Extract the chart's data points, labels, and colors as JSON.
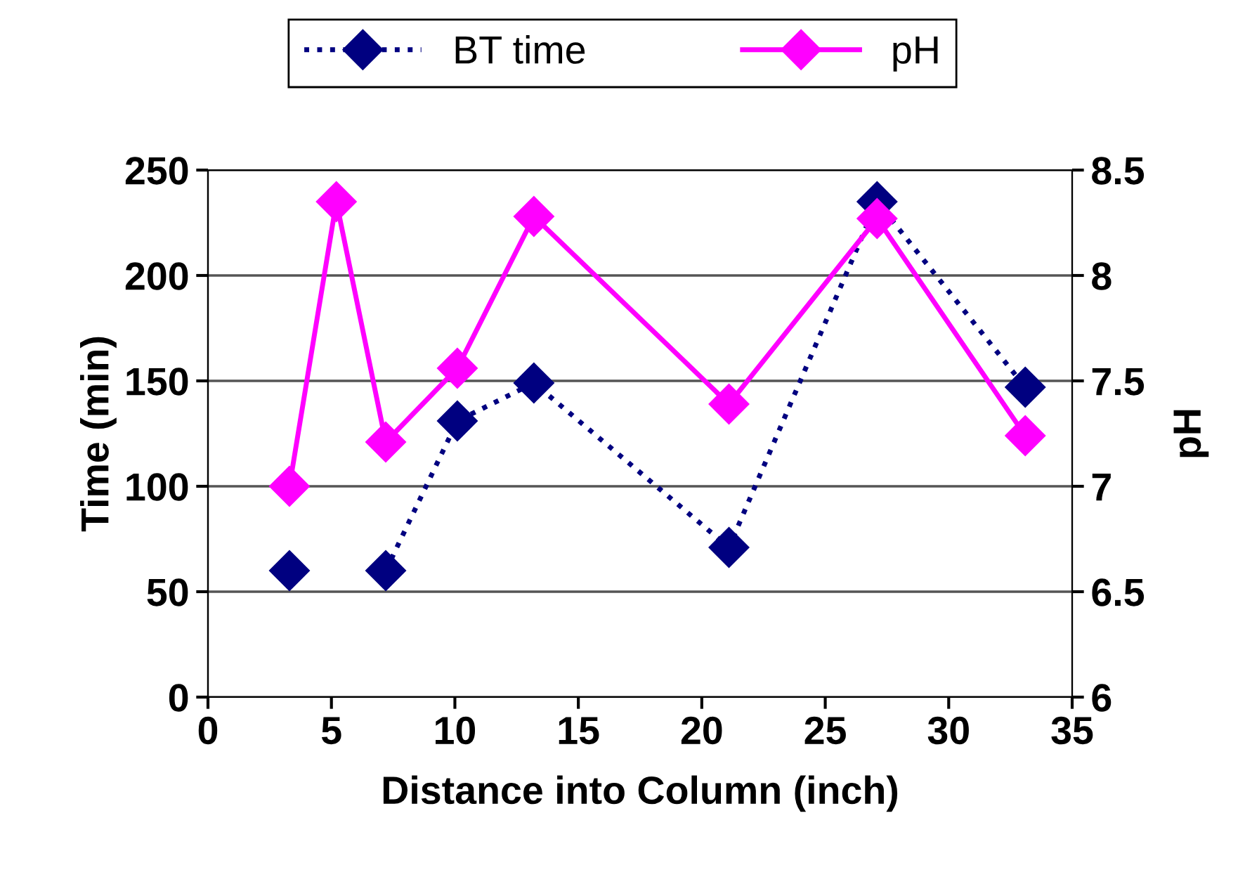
{
  "chart_data": {
    "type": "line",
    "xlabel": "Distance into Column (inch)",
    "ylabel": "Time (min)",
    "y2label": "pH",
    "xlim": [
      0,
      35
    ],
    "xticks": [
      0,
      5,
      10,
      15,
      20,
      25,
      30,
      35
    ],
    "ylim": [
      0,
      250
    ],
    "yticks": [
      0,
      50,
      100,
      150,
      200,
      250
    ],
    "y2lim": [
      6,
      8.5
    ],
    "y2ticks": [
      6,
      6.5,
      7,
      7.5,
      8,
      8.5
    ],
    "grid": "y",
    "legend": "top",
    "marker": "diamond",
    "series": [
      {
        "name": "BT time",
        "color": "#000080",
        "line_style": "dotted",
        "x": [
          3.3,
          5.2,
          7.2,
          10.1,
          13.2,
          21.1,
          27.1,
          33.1
        ],
        "values": [
          60,
          null,
          60,
          131,
          149,
          71,
          235,
          147
        ]
      },
      {
        "name": "pH",
        "color": "#ff00ff",
        "line_style": "solid",
        "axis": "y2",
        "x": [
          3.3,
          5.2,
          7.2,
          10.1,
          13.2,
          21.1,
          27.1,
          33.1
        ],
        "values": [
          7.0,
          8.35,
          7.21,
          7.56,
          8.28,
          7.39,
          8.27,
          7.24
        ]
      }
    ]
  }
}
